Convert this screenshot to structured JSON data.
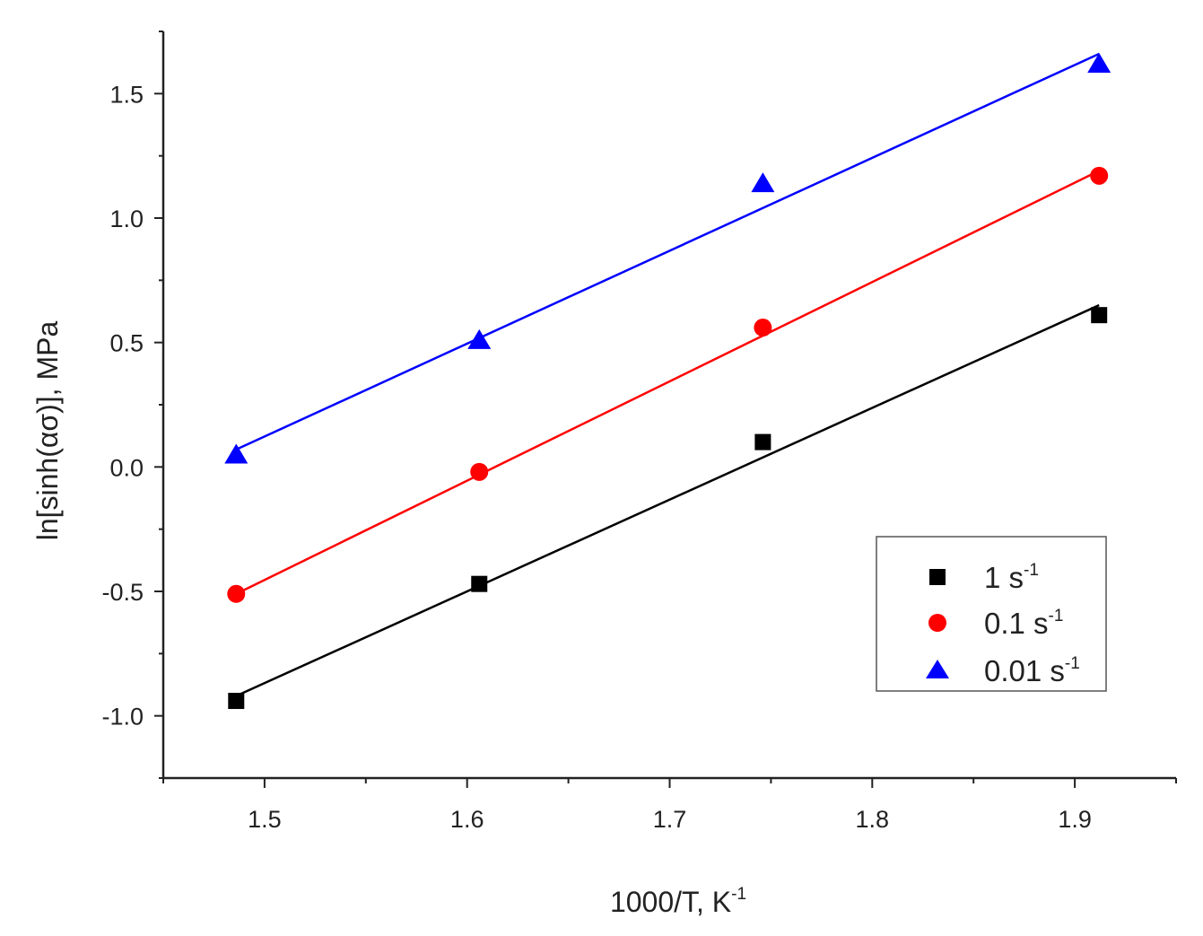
{
  "chart_data": {
    "type": "scatter",
    "title": "",
    "xlabel": "1000/T, K",
    "xlabel_superscript": "-1",
    "ylabel": "ln[sinh(ασ)], MPa",
    "xlim": [
      1.45,
      1.95
    ],
    "ylim": [
      -1.25,
      1.75
    ],
    "xticks": [
      1.5,
      1.6,
      1.7,
      1.8,
      1.9
    ],
    "xtick_labels": [
      "1.5",
      "1.6",
      "1.7",
      "1.8",
      "1.9"
    ],
    "yticks": [
      -1.0,
      -0.5,
      0.0,
      0.5,
      1.0,
      1.5
    ],
    "ytick_labels": [
      "-1.0",
      "-0.5",
      "0.0",
      "0.5",
      "1.0",
      "1.5"
    ],
    "grid": false,
    "legend_position": "bottom-right",
    "series": [
      {
        "name": "1 s",
        "name_superscript": "-1",
        "marker": "square",
        "color": "#000000",
        "x": [
          1.486,
          1.606,
          1.746,
          1.912
        ],
        "y": [
          -0.94,
          -0.47,
          0.1,
          0.61
        ],
        "fit": {
          "x": [
            1.486,
            1.912
          ],
          "y": [
            -0.92,
            0.65
          ]
        }
      },
      {
        "name": "0.1 s",
        "name_superscript": "-1",
        "marker": "circle",
        "color": "#ff0000",
        "x": [
          1.486,
          1.606,
          1.746,
          1.912
        ],
        "y": [
          -0.51,
          -0.02,
          0.56,
          1.17
        ],
        "fit": {
          "x": [
            1.486,
            1.912
          ],
          "y": [
            -0.51,
            1.19
          ]
        }
      },
      {
        "name": "0.01 s",
        "name_superscript": "-1",
        "marker": "triangle",
        "color": "#0000ff",
        "x": [
          1.486,
          1.606,
          1.746,
          1.912
        ],
        "y": [
          0.05,
          0.51,
          1.14,
          1.62
        ],
        "fit": {
          "x": [
            1.486,
            1.912
          ],
          "y": [
            0.07,
            1.66
          ]
        }
      }
    ]
  }
}
